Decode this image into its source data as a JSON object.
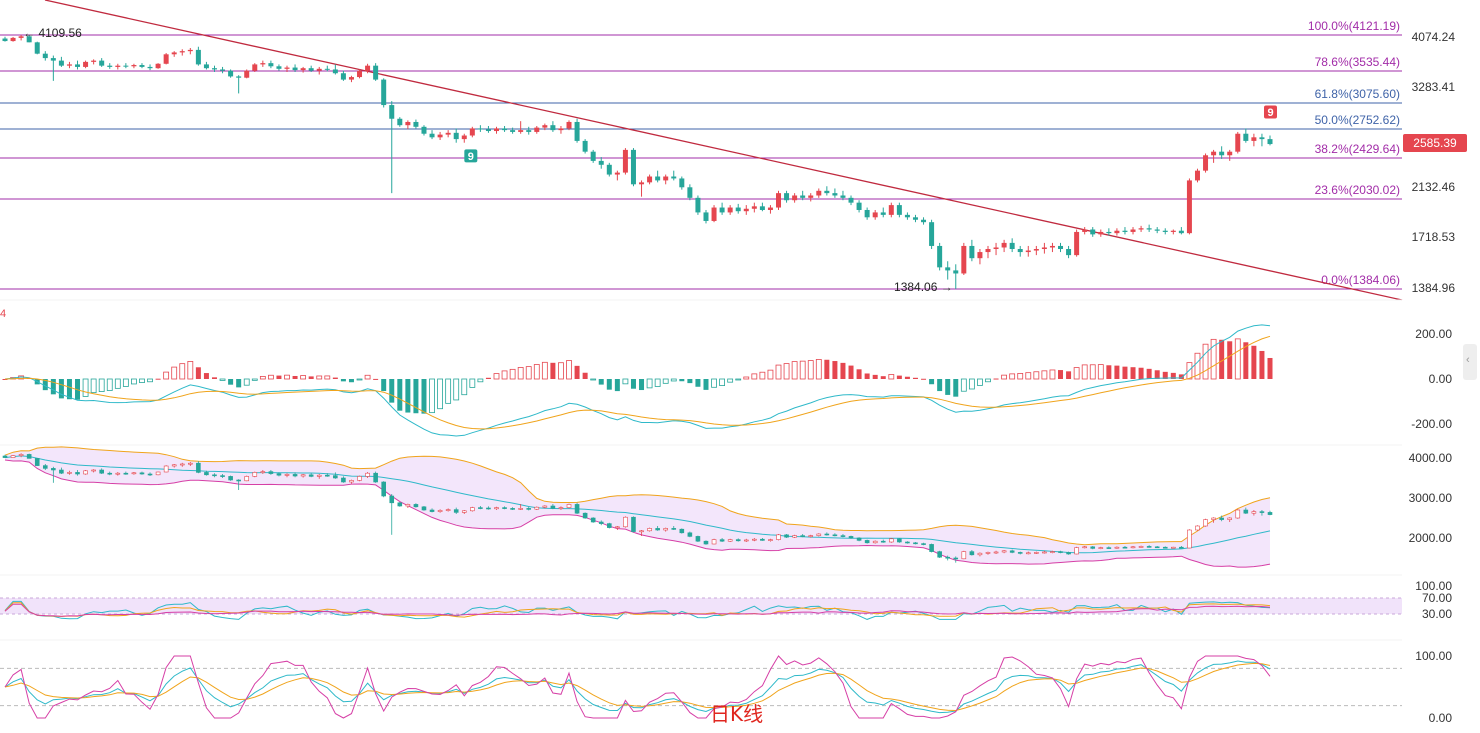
{
  "price_axis": {
    "ticks": [
      "4074.24",
      "3283.41",
      "2132.46",
      "1718.53",
      "1384.96"
    ],
    "current_price": "2585.39",
    "current_color": "#e5464f"
  },
  "colors": {
    "up": "#e5464f",
    "down": "#26a69a",
    "trend_line": "#c02a3f",
    "fib_purple": "#a22ca8",
    "fib_blue": "#3f63a8",
    "macd_fast": "#2fb9c9",
    "macd_slow": "#f0a41c",
    "boll_upper": "#f0a41c",
    "boll_mid": "#2fb9c9",
    "boll_lower": "#d63fa6",
    "boll_fill": "#f3e6fb"
  },
  "fib_levels": [
    {
      "label": "100.0%(4121.19)",
      "price": 4121.19,
      "color": "#a22ca8"
    },
    {
      "label": "78.6%(3535.44)",
      "price": 3535.44,
      "color": "#a22ca8"
    },
    {
      "label": "61.8%(3075.60)",
      "price": 3075.6,
      "color": "#3f63a8"
    },
    {
      "label": "50.0%(2752.62)",
      "price": 2752.62,
      "color": "#3f63a8"
    },
    {
      "label": "38.2%(2429.64)",
      "price": 2429.64,
      "color": "#a22ca8"
    },
    {
      "label": "23.6%(2030.02)",
      "price": 2030.02,
      "color": "#a22ca8"
    },
    {
      "label": "0.0%(1384.06)",
      "price": 1384.06,
      "color": "#a22ca8"
    }
  ],
  "annotations": {
    "high_label": "← 4109.56",
    "low_label": "1384.06 →",
    "td_down_badge": "9",
    "td_up_badge": "9",
    "pane2_marker": "4",
    "caption": "日K线"
  },
  "macd_axis": {
    "ticks": [
      "200.00",
      "0.00",
      "-200.00"
    ]
  },
  "boll_axis": {
    "ticks": [
      "4000.00",
      "3000.00",
      "2000.00"
    ]
  },
  "rsi_axis": {
    "ticks": [
      "100.00",
      "70.00",
      "30.00"
    ]
  },
  "kdj_axis": {
    "ticks": [
      "100.00",
      "0.00"
    ]
  },
  "chart_data": {
    "type": "candlestick",
    "candles": [
      [
        4050,
        4080,
        4000,
        4010
      ],
      [
        4010,
        4075,
        4000,
        4060
      ],
      [
        4060,
        4121,
        4020,
        4090
      ],
      [
        4090,
        4109,
        3990,
        3990
      ],
      [
        3990,
        4000,
        3800,
        3810
      ],
      [
        3810,
        3850,
        3700,
        3740
      ],
      [
        3740,
        3780,
        3380,
        3700
      ],
      [
        3700,
        3760,
        3600,
        3620
      ],
      [
        3620,
        3680,
        3580,
        3640
      ],
      [
        3640,
        3700,
        3560,
        3600
      ],
      [
        3600,
        3700,
        3580,
        3680
      ],
      [
        3680,
        3720,
        3640,
        3700
      ],
      [
        3700,
        3740,
        3600,
        3620
      ],
      [
        3620,
        3660,
        3570,
        3600
      ],
      [
        3600,
        3650,
        3560,
        3620
      ],
      [
        3620,
        3660,
        3580,
        3610
      ],
      [
        3610,
        3650,
        3580,
        3630
      ],
      [
        3630,
        3660,
        3580,
        3600
      ],
      [
        3600,
        3640,
        3550,
        3580
      ],
      [
        3580,
        3660,
        3570,
        3650
      ],
      [
        3650,
        3820,
        3640,
        3800
      ],
      [
        3800,
        3850,
        3760,
        3830
      ],
      [
        3830,
        3880,
        3780,
        3850
      ],
      [
        3850,
        3900,
        3800,
        3870
      ],
      [
        3870,
        3920,
        3620,
        3640
      ],
      [
        3640,
        3680,
        3560,
        3580
      ],
      [
        3580,
        3620,
        3520,
        3560
      ],
      [
        3560,
        3600,
        3500,
        3540
      ],
      [
        3540,
        3560,
        3430,
        3450
      ],
      [
        3450,
        3470,
        3200,
        3430
      ],
      [
        3430,
        3560,
        3420,
        3540
      ],
      [
        3540,
        3660,
        3520,
        3640
      ],
      [
        3640,
        3700,
        3600,
        3660
      ],
      [
        3660,
        3700,
        3580,
        3610
      ],
      [
        3610,
        3640,
        3540,
        3570
      ],
      [
        3570,
        3620,
        3520,
        3590
      ],
      [
        3590,
        3640,
        3520,
        3550
      ],
      [
        3550,
        3600,
        3510,
        3580
      ],
      [
        3580,
        3620,
        3520,
        3540
      ],
      [
        3540,
        3600,
        3480,
        3570
      ],
      [
        3570,
        3620,
        3530,
        3560
      ],
      [
        3560,
        3640,
        3480,
        3500
      ],
      [
        3500,
        3540,
        3380,
        3400
      ],
      [
        3400,
        3460,
        3360,
        3440
      ],
      [
        3440,
        3560,
        3420,
        3540
      ],
      [
        3540,
        3650,
        3500,
        3620
      ],
      [
        3620,
        3660,
        3380,
        3400
      ],
      [
        3400,
        3420,
        3020,
        3050
      ],
      [
        3050,
        3100,
        2080,
        2880
      ],
      [
        2880,
        2900,
        2780,
        2800
      ],
      [
        2800,
        2860,
        2750,
        2840
      ],
      [
        2840,
        2870,
        2760,
        2780
      ],
      [
        2780,
        2800,
        2680,
        2700
      ],
      [
        2700,
        2740,
        2640,
        2660
      ],
      [
        2660,
        2720,
        2630,
        2690
      ],
      [
        2690,
        2740,
        2660,
        2710
      ],
      [
        2710,
        2760,
        2600,
        2640
      ],
      [
        2640,
        2700,
        2600,
        2680
      ],
      [
        2680,
        2780,
        2660,
        2760
      ],
      [
        2760,
        2800,
        2720,
        2750
      ],
      [
        2750,
        2790,
        2710,
        2730
      ],
      [
        2730,
        2780,
        2700,
        2760
      ],
      [
        2760,
        2790,
        2720,
        2740
      ],
      [
        2740,
        2770,
        2700,
        2720
      ],
      [
        2720,
        2850,
        2700,
        2740
      ],
      [
        2740,
        2780,
        2690,
        2720
      ],
      [
        2720,
        2790,
        2700,
        2770
      ],
      [
        2770,
        2820,
        2740,
        2800
      ],
      [
        2800,
        2850,
        2720,
        2740
      ],
      [
        2740,
        2790,
        2700,
        2760
      ],
      [
        2760,
        2860,
        2740,
        2840
      ],
      [
        2840,
        2880,
        2600,
        2620
      ],
      [
        2620,
        2640,
        2480,
        2500
      ],
      [
        2500,
        2520,
        2380,
        2400
      ],
      [
        2400,
        2440,
        2320,
        2360
      ],
      [
        2360,
        2380,
        2240,
        2260
      ],
      [
        2260,
        2300,
        2200,
        2280
      ],
      [
        2280,
        2540,
        2260,
        2520
      ],
      [
        2520,
        2540,
        2140,
        2160
      ],
      [
        2160,
        2200,
        2050,
        2180
      ],
      [
        2180,
        2260,
        2160,
        2240
      ],
      [
        2240,
        2300,
        2180,
        2200
      ],
      [
        2200,
        2260,
        2160,
        2240
      ],
      [
        2240,
        2300,
        2200,
        2220
      ],
      [
        2220,
        2240,
        2110,
        2130
      ],
      [
        2130,
        2160,
        2020,
        2040
      ],
      [
        2040,
        2060,
        1900,
        1920
      ],
      [
        1920,
        1940,
        1830,
        1850
      ],
      [
        1850,
        1980,
        1840,
        1960
      ],
      [
        1960,
        2000,
        1900,
        1920
      ],
      [
        1920,
        1980,
        1900,
        1960
      ],
      [
        1960,
        1990,
        1910,
        1930
      ],
      [
        1930,
        1980,
        1900,
        1950
      ],
      [
        1950,
        2000,
        1920,
        1970
      ],
      [
        1970,
        2000,
        1930,
        1940
      ],
      [
        1940,
        1980,
        1910,
        1960
      ],
      [
        1960,
        2100,
        1940,
        2080
      ],
      [
        2080,
        2100,
        2000,
        2020
      ],
      [
        2020,
        2080,
        2000,
        2060
      ],
      [
        2060,
        2100,
        2020,
        2040
      ],
      [
        2040,
        2080,
        2010,
        2060
      ],
      [
        2060,
        2120,
        2040,
        2100
      ],
      [
        2100,
        2140,
        2060,
        2080
      ],
      [
        2080,
        2120,
        2040,
        2060
      ],
      [
        2060,
        2100,
        2020,
        2040
      ],
      [
        2040,
        2060,
        1980,
        2000
      ],
      [
        2000,
        2020,
        1920,
        1940
      ],
      [
        1940,
        1960,
        1860,
        1880
      ],
      [
        1880,
        1940,
        1860,
        1920
      ],
      [
        1920,
        1960,
        1880,
        1900
      ],
      [
        1900,
        2000,
        1880,
        1980
      ],
      [
        1980,
        2000,
        1880,
        1900
      ],
      [
        1900,
        1920,
        1860,
        1880
      ],
      [
        1880,
        1900,
        1840,
        1860
      ],
      [
        1860,
        1880,
        1820,
        1840
      ],
      [
        1840,
        1860,
        1640,
        1660
      ],
      [
        1660,
        1680,
        1500,
        1520
      ],
      [
        1520,
        1560,
        1440,
        1500
      ],
      [
        1500,
        1540,
        1384,
        1480
      ],
      [
        1480,
        1680,
        1470,
        1660
      ],
      [
        1660,
        1700,
        1560,
        1580
      ],
      [
        1580,
        1640,
        1540,
        1620
      ],
      [
        1620,
        1660,
        1580,
        1640
      ],
      [
        1640,
        1680,
        1600,
        1650
      ],
      [
        1650,
        1700,
        1620,
        1680
      ],
      [
        1680,
        1710,
        1620,
        1640
      ],
      [
        1640,
        1660,
        1590,
        1620
      ],
      [
        1620,
        1660,
        1590,
        1630
      ],
      [
        1630,
        1660,
        1600,
        1640
      ],
      [
        1640,
        1680,
        1610,
        1650
      ],
      [
        1650,
        1680,
        1620,
        1660
      ],
      [
        1660,
        1680,
        1620,
        1640
      ],
      [
        1640,
        1660,
        1580,
        1600
      ],
      [
        1600,
        1780,
        1590,
        1760
      ],
      [
        1760,
        1800,
        1740,
        1780
      ],
      [
        1780,
        1800,
        1720,
        1740
      ],
      [
        1740,
        1780,
        1720,
        1760
      ],
      [
        1760,
        1790,
        1730,
        1750
      ],
      [
        1750,
        1790,
        1730,
        1770
      ],
      [
        1770,
        1800,
        1740,
        1760
      ],
      [
        1760,
        1800,
        1740,
        1780
      ],
      [
        1780,
        1810,
        1760,
        1790
      ],
      [
        1790,
        1820,
        1760,
        1780
      ],
      [
        1780,
        1800,
        1750,
        1770
      ],
      [
        1770,
        1790,
        1740,
        1760
      ],
      [
        1760,
        1780,
        1740,
        1770
      ],
      [
        1770,
        1800,
        1740,
        1750
      ],
      [
        1750,
        2220,
        1740,
        2200
      ],
      [
        2200,
        2320,
        2180,
        2300
      ],
      [
        2300,
        2480,
        2280,
        2460
      ],
      [
        2460,
        2520,
        2380,
        2500
      ],
      [
        2500,
        2560,
        2420,
        2460
      ],
      [
        2460,
        2520,
        2400,
        2500
      ],
      [
        2500,
        2720,
        2480,
        2700
      ],
      [
        2700,
        2760,
        2600,
        2620
      ],
      [
        2620,
        2700,
        2560,
        2660
      ],
      [
        2660,
        2700,
        2560,
        2640
      ],
      [
        2640,
        2680,
        2570,
        2585
      ]
    ]
  }
}
